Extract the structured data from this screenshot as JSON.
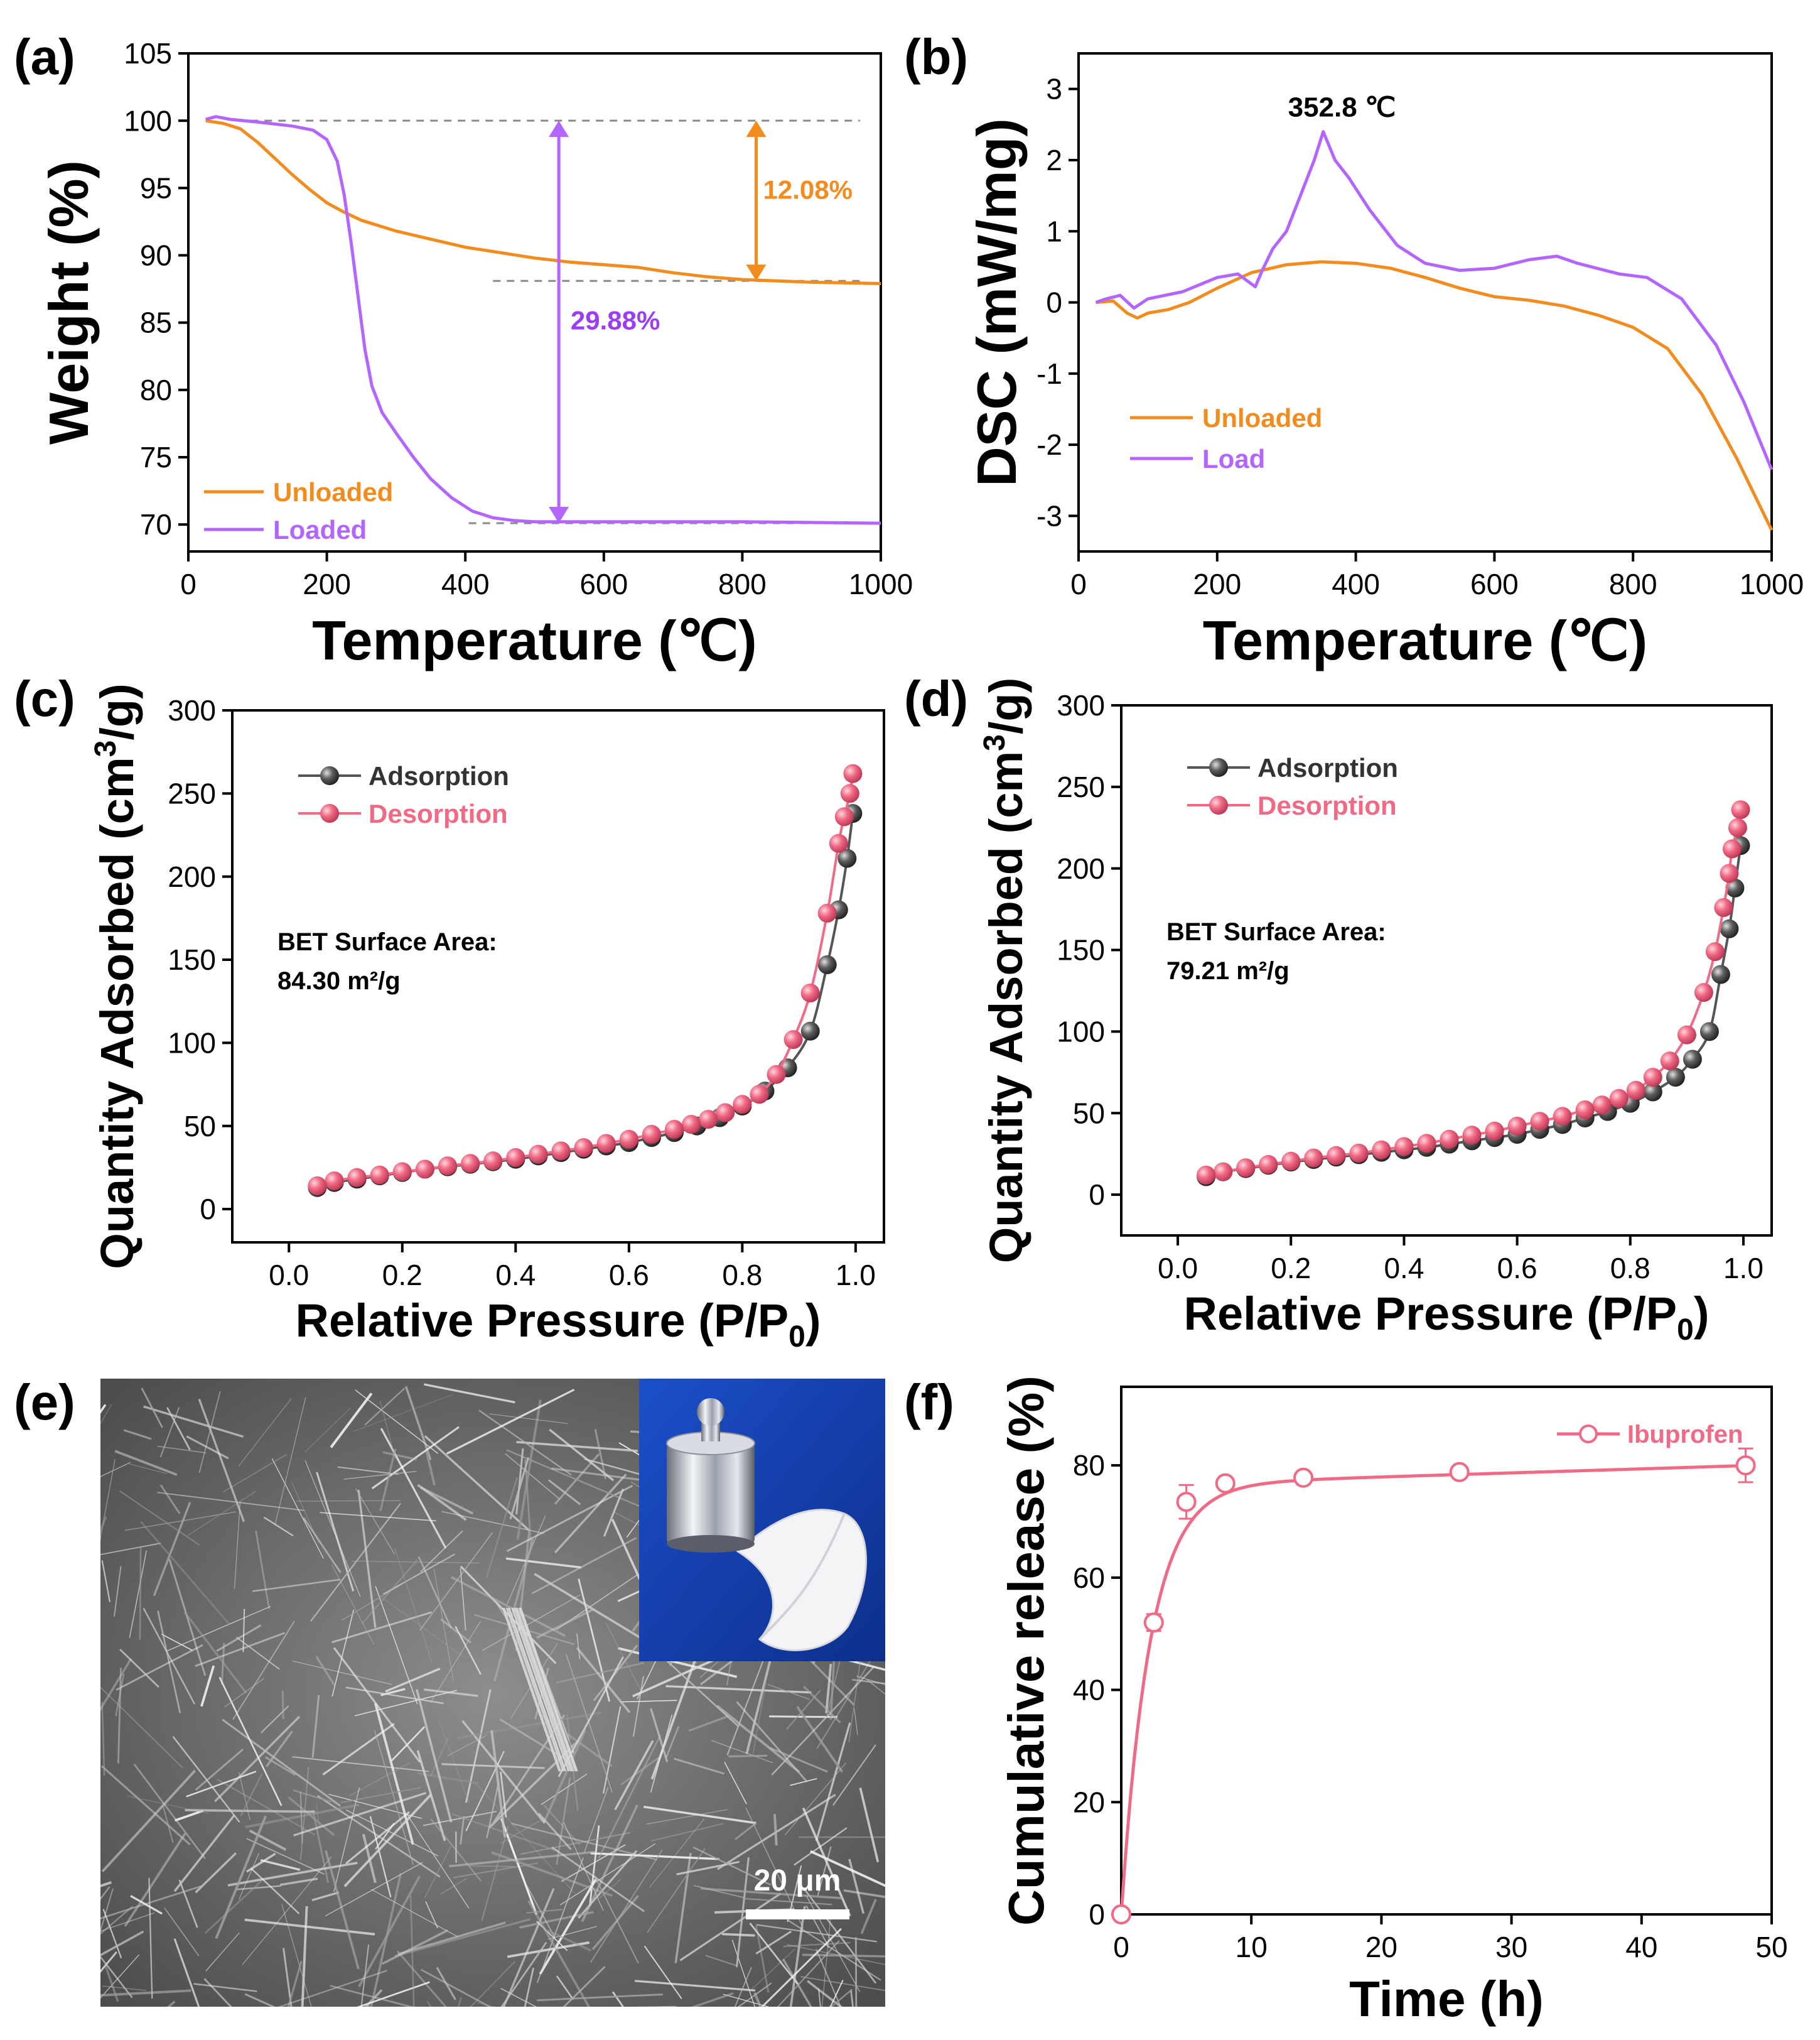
{
  "figure": {
    "panel_labels": [
      "(a)",
      "(b)",
      "(c)",
      "(d)",
      "(e)",
      "(f)"
    ]
  },
  "colors": {
    "orange": "#F28C1E",
    "purple": "#B266FF",
    "purple_text": "#9B3DF0",
    "pink": "#F06A85",
    "dark_marker": "#555555",
    "dashed": "#8a8a8a"
  },
  "chart_data": [
    {
      "panel": "(a)",
      "type": "line",
      "xlabel": "Temperature (℃)",
      "ylabel": "Weight (%)",
      "xlim": [
        0,
        1000
      ],
      "ylim": [
        68,
        105
      ],
      "xticks": [
        0,
        200,
        400,
        600,
        800,
        1000
      ],
      "yticks": [
        70,
        75,
        80,
        85,
        90,
        95,
        100,
        105
      ],
      "legend_position": "bottom-left",
      "series": [
        {
          "name": "Unloaded",
          "color": "#F28C1E",
          "x": [
            25,
            50,
            75,
            100,
            125,
            150,
            175,
            200,
            225,
            250,
            300,
            350,
            400,
            450,
            500,
            550,
            600,
            650,
            700,
            750,
            800,
            850,
            900,
            950,
            1000
          ],
          "y": [
            100,
            99.8,
            99.4,
            98.4,
            97.2,
            96.0,
            94.9,
            93.9,
            93.2,
            92.6,
            91.8,
            91.2,
            90.6,
            90.2,
            89.8,
            89.5,
            89.3,
            89.1,
            88.7,
            88.4,
            88.2,
            88.1,
            88.0,
            87.95,
            87.9
          ]
        },
        {
          "name": "Loaded",
          "color": "#B266FF",
          "x": [
            25,
            40,
            60,
            100,
            150,
            180,
            200,
            215,
            225,
            235,
            245,
            255,
            265,
            280,
            300,
            325,
            350,
            380,
            410,
            440,
            470,
            500,
            550,
            600,
            700,
            800,
            900,
            1000
          ],
          "y": [
            100.1,
            100.3,
            100.1,
            99.9,
            99.6,
            99.3,
            98.6,
            97.0,
            94.5,
            91.0,
            87.0,
            83.0,
            80.3,
            78.3,
            76.8,
            75.0,
            73.4,
            72.0,
            71.0,
            70.5,
            70.3,
            70.2,
            70.2,
            70.2,
            70.2,
            70.2,
            70.15,
            70.1
          ]
        }
      ],
      "annotations": [
        {
          "text": "12.08%",
          "color": "#F28C1E"
        },
        {
          "text": "29.88%",
          "color": "#9B3DF0"
        }
      ],
      "guides": {
        "dashed_y": [
          100,
          88.1,
          70.1
        ],
        "orange_arrow": {
          "x": 820,
          "y_from": 100,
          "y_to": 88.1
        },
        "purple_arrow": {
          "x": 535,
          "y_from": 100,
          "y_to": 70.1
        }
      }
    },
    {
      "panel": "(b)",
      "type": "line",
      "xlabel": "Temperature (℃)",
      "ylabel": "DSC (mW/mg)",
      "xlim": [
        0,
        1000
      ],
      "ylim": [
        -3.5,
        3.5
      ],
      "xticks": [
        0,
        200,
        400,
        600,
        800,
        1000
      ],
      "yticks": [
        -3,
        -2,
        -1,
        0,
        1,
        2,
        3
      ],
      "legend_position": "bottom-left",
      "series": [
        {
          "name": "Unloaded",
          "color": "#F28C1E",
          "x": [
            25,
            50,
            70,
            85,
            100,
            130,
            160,
            200,
            250,
            300,
            350,
            400,
            450,
            500,
            550,
            600,
            650,
            700,
            750,
            800,
            850,
            900,
            950,
            1000
          ],
          "y": [
            0.0,
            0.02,
            -0.15,
            -0.22,
            -0.15,
            -0.1,
            0.0,
            0.2,
            0.42,
            0.53,
            0.57,
            0.55,
            0.48,
            0.35,
            0.2,
            0.08,
            0.03,
            -0.05,
            -0.18,
            -0.35,
            -0.65,
            -1.3,
            -2.2,
            -3.2
          ]
        },
        {
          "name": "Load",
          "color": "#B266FF",
          "x": [
            25,
            40,
            60,
            80,
            100,
            150,
            200,
            230,
            255,
            265,
            280,
            300,
            320,
            340,
            353,
            370,
            390,
            420,
            460,
            500,
            550,
            600,
            650,
            690,
            720,
            780,
            820,
            870,
            920,
            960,
            1000
          ],
          "y": [
            0.0,
            0.05,
            0.1,
            -0.08,
            0.05,
            0.15,
            0.35,
            0.4,
            0.22,
            0.45,
            0.75,
            1.0,
            1.5,
            2.0,
            2.4,
            2.0,
            1.75,
            1.3,
            0.8,
            0.55,
            0.45,
            0.48,
            0.6,
            0.65,
            0.55,
            0.4,
            0.35,
            0.05,
            -0.6,
            -1.4,
            -2.35
          ]
        }
      ],
      "annotations": [
        {
          "text": "352.8 ℃",
          "x": 352.8,
          "y": 2.4
        }
      ]
    },
    {
      "panel": "(c)",
      "type": "scatter",
      "xlabel_main": "Relative Pressure (P/P",
      "xlabel_sub": "0",
      "xlabel_end": ")",
      "ylabel_main": "Quantity Adsorbed (cm",
      "ylabel_sup": "3",
      "ylabel_end": "/g)",
      "xlim": [
        -0.1,
        1.05
      ],
      "ylim": [
        -20,
        300
      ],
      "xticks": [
        "0.0",
        "0.2",
        "0.4",
        "0.6",
        "0.8",
        "1.0"
      ],
      "yticks": [
        0,
        50,
        100,
        150,
        200,
        250,
        300
      ],
      "legend_position": "top-left",
      "bet_title": "BET Surface Area:",
      "bet_value": "84.30 m²/g",
      "series": [
        {
          "name": "Adsorption",
          "color": "#555555",
          "x": [
            0.05,
            0.08,
            0.12,
            0.16,
            0.2,
            0.24,
            0.28,
            0.32,
            0.36,
            0.4,
            0.44,
            0.48,
            0.52,
            0.56,
            0.6,
            0.64,
            0.68,
            0.72,
            0.76,
            0.8,
            0.84,
            0.88,
            0.92,
            0.95,
            0.97,
            0.985,
            0.995
          ],
          "y": [
            13,
            16,
            18,
            20,
            22,
            24,
            25.5,
            27,
            28.5,
            30,
            32,
            34,
            36,
            38,
            40,
            43,
            46,
            50,
            55,
            62,
            71,
            85,
            107,
            147,
            180,
            211,
            238
          ]
        },
        {
          "name": "Desorption",
          "color": "#F06A85",
          "x": [
            0.995,
            0.99,
            0.98,
            0.97,
            0.95,
            0.92,
            0.89,
            0.86,
            0.83,
            0.8,
            0.77,
            0.74,
            0.71,
            0.68,
            0.64,
            0.6,
            0.56,
            0.52,
            0.48,
            0.44,
            0.4,
            0.36,
            0.32,
            0.28,
            0.24,
            0.2,
            0.16,
            0.12,
            0.08,
            0.05
          ],
          "y": [
            262,
            250,
            236,
            220,
            178,
            130,
            102,
            81,
            69,
            63,
            58,
            54,
            51,
            48,
            45,
            42,
            39.5,
            37,
            35,
            33,
            31,
            29,
            27.5,
            26,
            24,
            22.5,
            20.5,
            19,
            17,
            14
          ]
        }
      ]
    },
    {
      "panel": "(d)",
      "type": "scatter",
      "xlabel_main": "Relative Pressure (P/P",
      "xlabel_sub": "0",
      "xlabel_end": ")",
      "ylabel_main": "Quantity Adsorbed (cm",
      "ylabel_sup": "3",
      "ylabel_end": "/g)",
      "xlim": [
        -0.1,
        1.05
      ],
      "ylim": [
        -25,
        300
      ],
      "xticks": [
        "0.0",
        "0.2",
        "0.4",
        "0.6",
        "0.8",
        "1.0"
      ],
      "yticks": [
        0,
        50,
        100,
        150,
        200,
        250,
        300
      ],
      "legend_position": "top-left",
      "bet_title": "BET Surface Area:",
      "bet_value": "79.21 m²/g",
      "series": [
        {
          "name": "Adsorption",
          "color": "#555555",
          "x": [
            0.05,
            0.08,
            0.12,
            0.16,
            0.2,
            0.24,
            0.28,
            0.32,
            0.36,
            0.4,
            0.44,
            0.48,
            0.52,
            0.56,
            0.6,
            0.64,
            0.68,
            0.72,
            0.76,
            0.8,
            0.84,
            0.88,
            0.91,
            0.94,
            0.96,
            0.975,
            0.985,
            0.995
          ],
          "y": [
            11,
            14,
            16,
            18,
            20,
            21.5,
            23,
            24.5,
            26,
            27.5,
            29,
            31,
            33,
            35,
            37,
            40,
            43,
            47,
            51,
            56,
            63,
            72,
            83,
            100,
            135,
            163,
            188,
            214
          ]
        },
        {
          "name": "Desorption",
          "color": "#F06A85",
          "x": [
            0.995,
            0.99,
            0.98,
            0.975,
            0.965,
            0.95,
            0.93,
            0.9,
            0.87,
            0.84,
            0.81,
            0.78,
            0.75,
            0.72,
            0.68,
            0.64,
            0.6,
            0.56,
            0.52,
            0.48,
            0.44,
            0.4,
            0.36,
            0.32,
            0.28,
            0.24,
            0.2,
            0.16,
            0.12,
            0.08,
            0.05
          ],
          "y": [
            236,
            225,
            212,
            197,
            176,
            149,
            124,
            98,
            82,
            72,
            64,
            59,
            55,
            52,
            48,
            45,
            42,
            39,
            36.5,
            34,
            31.5,
            29.5,
            27.5,
            25.5,
            24,
            22.5,
            20.5,
            18.5,
            16.5,
            14,
            12
          ]
        }
      ]
    },
    {
      "panel": "(f)",
      "type": "line",
      "xlabel": "Time (h)",
      "ylabel": "Cumulative release (%)",
      "xlim": [
        0,
        50
      ],
      "ylim": [
        0,
        94
      ],
      "xticks": [
        0,
        10,
        20,
        30,
        40,
        50
      ],
      "yticks": [
        0,
        20,
        40,
        60,
        80
      ],
      "legend_position": "top-right",
      "series": [
        {
          "name": "Ibuprofen",
          "color": "#F06A85",
          "x": [
            0,
            2.5,
            5,
            8,
            14,
            26,
            48
          ],
          "y": [
            0,
            52,
            73.5,
            76.8,
            77.8,
            78.8,
            80
          ],
          "err": [
            0,
            1.5,
            3,
            1,
            0.8,
            0.8,
            3
          ]
        }
      ]
    }
  ],
  "sem_image": {
    "scale_bar_label": "20 μm"
  }
}
